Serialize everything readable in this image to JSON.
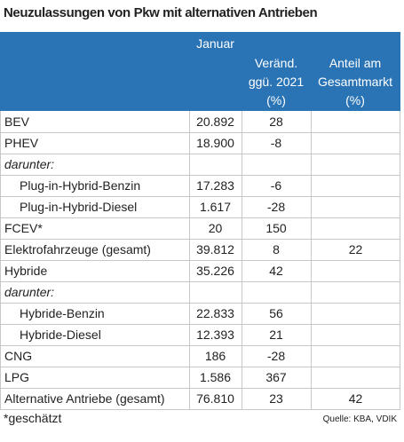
{
  "title": "Neuzulassungen von Pkw mit alternativen Antrieben",
  "table": {
    "header": {
      "januar": "Januar",
      "change": "Veränd. ggü. 2021 (%)",
      "share": "Anteil am Gesamtmarkt (%)"
    },
    "rows": [
      {
        "label": "BEV",
        "januar": "20.892",
        "change": "28",
        "share": null
      },
      {
        "label": "PHEV",
        "januar": "18.900",
        "change": "-8",
        "share": null
      },
      {
        "label": "darunter:",
        "style": "italic",
        "januar": null,
        "change": null,
        "share": null
      },
      {
        "label": "Plug-in-Hybrid-Benzin",
        "style": "indent",
        "januar": "17.283",
        "change": "-6",
        "share": null
      },
      {
        "label": "Plug-in-Hybrid-Diesel",
        "style": "indent",
        "januar": "1.617",
        "change": "-28",
        "share": null
      },
      {
        "label": "FCEV*",
        "januar": "20",
        "change": "150",
        "share": null
      },
      {
        "label": "Elektrofahrzeuge (gesamt)",
        "januar": "39.812",
        "change": "8",
        "share": "22"
      },
      {
        "label": "Hybride",
        "januar": "35.226",
        "change": "42",
        "share": null
      },
      {
        "label": "darunter:",
        "style": "italic",
        "januar": null,
        "change": null,
        "share": null
      },
      {
        "label": "Hybride-Benzin",
        "style": "indent",
        "januar": "22.833",
        "change": "56",
        "share": null
      },
      {
        "label": "Hybride-Diesel",
        "style": "indent",
        "januar": "12.393",
        "change": "21",
        "share": null
      },
      {
        "label": "CNG",
        "januar": "186",
        "change": "-28",
        "share": null
      },
      {
        "label": "LPG",
        "januar": "1.586",
        "change": "367",
        "share": null
      },
      {
        "label": "Alternative Antriebe (gesamt)",
        "januar": "76.810",
        "change": "23",
        "share": "42"
      }
    ]
  },
  "footnote": "*geschätzt",
  "source": "Quelle: KBA, VDIK"
}
